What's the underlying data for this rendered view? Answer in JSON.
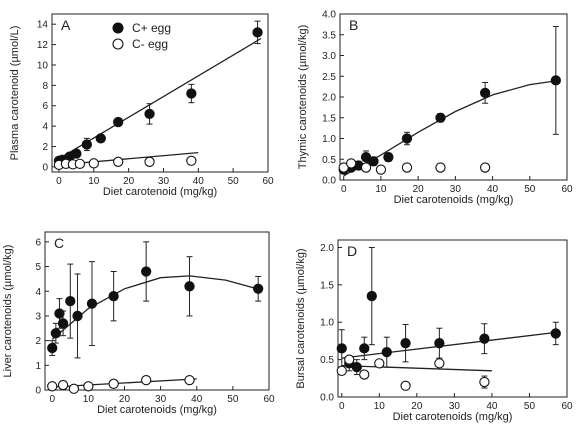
{
  "chart_data": [
    {
      "type": "scatter",
      "panel_letter": "A",
      "xlabel": "Diet carotenoid (mg/kg)",
      "ylabel": "Plasma carotenoid (µmol/L)",
      "xlim": [
        -2,
        60
      ],
      "ylim": [
        -0.5,
        15
      ],
      "xticks": [
        "0",
        "10",
        "20",
        "30",
        "40",
        "50",
        "60"
      ],
      "yticks": [
        "0",
        "2",
        "4",
        "6",
        "8",
        "10",
        "12",
        "14"
      ],
      "legend": {
        "position": "top-center",
        "entries": [
          "C+ egg",
          "C- egg"
        ]
      },
      "series": [
        {
          "name": "C+ egg",
          "marker": "filled-circle",
          "fit": "linear",
          "x": [
            0,
            1,
            3,
            5,
            8,
            12,
            17,
            26,
            38,
            57
          ],
          "y": [
            0.6,
            0.7,
            1.0,
            1.3,
            2.2,
            2.8,
            4.4,
            5.2,
            7.2,
            13.2
          ],
          "err": [
            0.2,
            0.2,
            0.3,
            0.3,
            0.6,
            0.3,
            0.3,
            1.0,
            0.9,
            1.1
          ],
          "fit_points": [
            [
              0,
              0.8
            ],
            [
              58,
              12.6
            ]
          ]
        },
        {
          "name": "C- egg",
          "marker": "open-circle",
          "fit": "linear",
          "x": [
            0,
            2,
            4,
            6,
            10,
            17,
            26,
            38
          ],
          "y": [
            0.2,
            0.3,
            0.25,
            0.3,
            0.35,
            0.5,
            0.5,
            0.6
          ],
          "err": [
            0,
            0,
            0,
            0,
            0,
            0,
            0,
            0
          ],
          "fit_points": [
            [
              0,
              0.2
            ],
            [
              40,
              1.4
            ]
          ]
        }
      ]
    },
    {
      "type": "scatter",
      "panel_letter": "B",
      "xlabel": "Diet carotenoids (mg/kg)",
      "ylabel": "Thymic carotenoids (µmol/kg)",
      "xlim": [
        -1,
        60
      ],
      "ylim": [
        0,
        4
      ],
      "xticks": [
        "0",
        "10",
        "20",
        "30",
        "40",
        "50",
        "60"
      ],
      "yticks": [
        "0.0",
        "0.5",
        "1.0",
        "1.5",
        "2.0",
        "2.5",
        "3.0",
        "3.5",
        "4.0"
      ],
      "series": [
        {
          "name": "C+ egg",
          "marker": "filled-circle",
          "fit": "curve",
          "x": [
            0,
            2,
            4,
            6,
            8,
            12,
            17,
            26,
            38,
            57
          ],
          "y": [
            0.25,
            0.3,
            0.35,
            0.55,
            0.45,
            0.55,
            1.0,
            1.5,
            2.1,
            2.4
          ],
          "err": [
            0.05,
            0.05,
            0.1,
            0.15,
            0.1,
            0.1,
            0.15,
            0.1,
            0.25,
            1.3
          ],
          "fit_points": [
            [
              0,
              0.1
            ],
            [
              10,
              0.6
            ],
            [
              20,
              1.15
            ],
            [
              30,
              1.65
            ],
            [
              40,
              2.05
            ],
            [
              50,
              2.3
            ],
            [
              58,
              2.4
            ]
          ]
        },
        {
          "name": "C- egg",
          "marker": "open-circle",
          "x": [
            0,
            2,
            6,
            10,
            17,
            26,
            38
          ],
          "y": [
            0.3,
            0.4,
            0.3,
            0.25,
            0.3,
            0.3,
            0.3
          ],
          "err": [
            0,
            0,
            0,
            0,
            0,
            0,
            0
          ]
        }
      ]
    },
    {
      "type": "scatter",
      "panel_letter": "C",
      "xlabel": "Diet carotenoids (mg/kg)",
      "ylabel": "Liver carotenoids (µmol/kg)",
      "xlim": [
        -2,
        60
      ],
      "ylim": [
        0,
        6.4
      ],
      "xticks": [
        "0",
        "10",
        "20",
        "30",
        "40",
        "50",
        "60"
      ],
      "yticks": [
        "0",
        "1",
        "2",
        "3",
        "4",
        "5",
        "6"
      ],
      "series": [
        {
          "name": "C+ egg",
          "marker": "filled-circle",
          "fit": "curve",
          "x": [
            0,
            1,
            2,
            3,
            5,
            7,
            11,
            17,
            26,
            38,
            57
          ],
          "y": [
            1.7,
            2.3,
            3.1,
            2.7,
            3.6,
            3.0,
            3.5,
            3.8,
            4.8,
            4.2,
            4.1
          ],
          "err": [
            0.3,
            0.4,
            0.6,
            0.5,
            1.5,
            1.7,
            1.7,
            1.0,
            1.2,
            1.2,
            0.5
          ],
          "fit_points": [
            [
              0,
              2.05
            ],
            [
              10,
              3.3
            ],
            [
              20,
              4.1
            ],
            [
              30,
              4.55
            ],
            [
              38,
              4.62
            ],
            [
              48,
              4.45
            ],
            [
              58,
              4.05
            ]
          ]
        },
        {
          "name": "C- egg",
          "marker": "open-circle",
          "fit": "linear",
          "x": [
            0,
            3,
            6,
            10,
            17,
            26,
            38
          ],
          "y": [
            0.15,
            0.2,
            0.05,
            0.15,
            0.25,
            0.4,
            0.4
          ],
          "err": [
            0,
            0,
            0,
            0,
            0,
            0,
            0
          ],
          "fit_points": [
            [
              0,
              0.12
            ],
            [
              40,
              0.45
            ]
          ]
        }
      ]
    },
    {
      "type": "scatter",
      "panel_letter": "D",
      "xlabel": "Diet carotenoids (mg/kg)",
      "ylabel": "Bursal carotenoids (µmol/kg)",
      "xlim": [
        -1,
        60
      ],
      "ylim": [
        0,
        2.1
      ],
      "xticks": [
        "0",
        "10",
        "20",
        "30",
        "40",
        "50",
        "60"
      ],
      "yticks": [
        "0.0",
        "0.5",
        "1.0",
        "1.5",
        "2.0"
      ],
      "series": [
        {
          "name": "C+ egg",
          "marker": "filled-circle",
          "fit": "linear",
          "x": [
            0,
            2,
            4,
            6,
            8,
            12,
            17,
            26,
            38,
            57
          ],
          "y": [
            0.65,
            0.45,
            0.4,
            0.65,
            1.35,
            0.6,
            0.72,
            0.72,
            0.78,
            0.85
          ],
          "err": [
            0.25,
            0.1,
            0.1,
            0.15,
            0.65,
            0.2,
            0.25,
            0.2,
            0.2,
            0.15
          ],
          "fit_points": [
            [
              0,
              0.52
            ],
            [
              58,
              0.87
            ]
          ]
        },
        {
          "name": "C- egg",
          "marker": "open-circle",
          "fit": "linear",
          "x": [
            0,
            2,
            6,
            10,
            17,
            26,
            38
          ],
          "y": [
            0.35,
            0.5,
            0.3,
            0.45,
            0.15,
            0.45,
            0.2
          ],
          "err": [
            0,
            0,
            0,
            0,
            0,
            0,
            0.08
          ],
          "fit_points": [
            [
              0,
              0.42
            ],
            [
              40,
              0.35
            ]
          ]
        }
      ]
    }
  ]
}
